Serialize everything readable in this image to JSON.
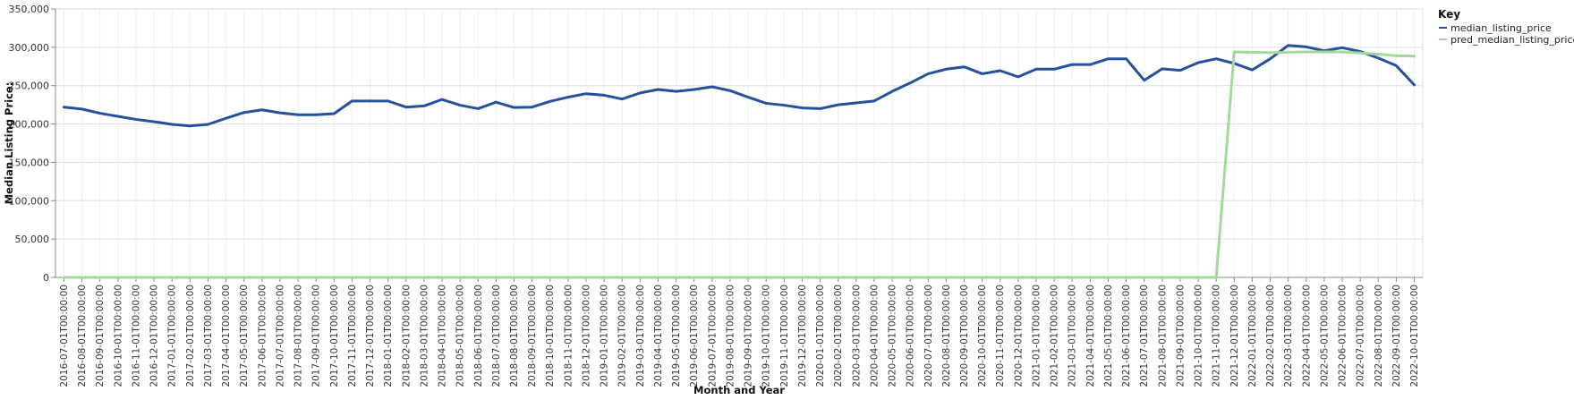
{
  "chart_data": {
    "type": "line",
    "xlabel": "Month and Year",
    "ylabel": "Median Listing Price:",
    "ylim": [
      0,
      350000
    ],
    "yticks": [
      "0",
      "50,000",
      "100,000",
      "150,000",
      "200,000",
      "250,000",
      "300,000",
      "350,000"
    ],
    "x": [
      "2016-07-01T00:00:00",
      "2016-08-01T00:00:00",
      "2016-09-01T00:00:00",
      "2016-10-01T00:00:00",
      "2016-11-01T00:00:00",
      "2016-12-01T00:00:00",
      "2017-01-01T00:00:00",
      "2017-02-01T00:00:00",
      "2017-03-01T00:00:00",
      "2017-04-01T00:00:00",
      "2017-05-01T00:00:00",
      "2017-06-01T00:00:00",
      "2017-07-01T00:00:00",
      "2017-08-01T00:00:00",
      "2017-09-01T00:00:00",
      "2017-10-01T00:00:00",
      "2017-11-01T00:00:00",
      "2017-12-01T00:00:00",
      "2018-01-01T00:00:00",
      "2018-02-01T00:00:00",
      "2018-03-01T00:00:00",
      "2018-04-01T00:00:00",
      "2018-05-01T00:00:00",
      "2018-06-01T00:00:00",
      "2018-07-01T00:00:00",
      "2018-08-01T00:00:00",
      "2018-09-01T00:00:00",
      "2018-10-01T00:00:00",
      "2018-11-01T00:00:00",
      "2018-12-01T00:00:00",
      "2019-01-01T00:00:00",
      "2019-02-01T00:00:00",
      "2019-03-01T00:00:00",
      "2019-04-01T00:00:00",
      "2019-05-01T00:00:00",
      "2019-06-01T00:00:00",
      "2019-07-01T00:00:00",
      "2019-08-01T00:00:00",
      "2019-09-01T00:00:00",
      "2019-10-01T00:00:00",
      "2019-11-01T00:00:00",
      "2019-12-01T00:00:00",
      "2020-01-01T00:00:00",
      "2020-02-01T00:00:00",
      "2020-03-01T00:00:00",
      "2020-04-01T00:00:00",
      "2020-05-01T00:00:00",
      "2020-06-01T00:00:00",
      "2020-07-01T00:00:00",
      "2020-08-01T00:00:00",
      "2020-09-01T00:00:00",
      "2020-10-01T00:00:00",
      "2020-11-01T00:00:00",
      "2020-12-01T00:00:00",
      "2021-01-01T00:00:00",
      "2021-02-01T00:00:00",
      "2021-03-01T00:00:00",
      "2021-04-01T00:00:00",
      "2021-05-01T00:00:00",
      "2021-06-01T00:00:00",
      "2021-07-01T00:00:00",
      "2021-08-01T00:00:00",
      "2021-09-01T00:00:00",
      "2021-10-01T00:00:00",
      "2021-11-01T00:00:00",
      "2021-12-01T00:00:00",
      "2022-01-01T00:00:00",
      "2022-02-01T00:00:00",
      "2022-03-01T00:00:00",
      "2022-04-01T00:00:00",
      "2022-05-01T00:00:00",
      "2022-06-01T00:00:00",
      "2022-07-01T00:00:00",
      "2022-08-01T00:00:00",
      "2022-09-01T00:00:00",
      "2022-10-01T00:00:00"
    ],
    "series": [
      {
        "name": "median_listing_price",
        "color": "#24519c",
        "values": [
          222000,
          219500,
          214000,
          210000,
          206000,
          203000,
          199500,
          197500,
          199500,
          207500,
          215000,
          218500,
          214500,
          212000,
          212000,
          213500,
          230000,
          230000,
          230000,
          222000,
          223500,
          232000,
          224500,
          220000,
          228500,
          221500,
          222000,
          229500,
          235000,
          239500,
          237500,
          232500,
          240500,
          245000,
          242500,
          245000,
          248500,
          243500,
          235000,
          227000,
          224500,
          221000,
          220000,
          225000,
          227500,
          230000,
          242500,
          253500,
          265500,
          271500,
          274500,
          265500,
          269500,
          261500,
          271500,
          271500,
          277500,
          277500,
          285000,
          285000,
          257000,
          272000,
          270000,
          280000,
          285000,
          279000,
          270500,
          285000,
          302500,
          300500,
          295500,
          299500,
          294500,
          286000,
          276000,
          251000
        ]
      },
      {
        "name": "pred_median_listing_price",
        "color": "#a1d99b",
        "values": [
          0,
          0,
          0,
          0,
          0,
          0,
          0,
          0,
          0,
          0,
          0,
          0,
          0,
          0,
          0,
          0,
          0,
          0,
          0,
          0,
          0,
          0,
          0,
          0,
          0,
          0,
          0,
          0,
          0,
          0,
          0,
          0,
          0,
          0,
          0,
          0,
          0,
          0,
          0,
          0,
          0,
          0,
          0,
          0,
          0,
          0,
          0,
          0,
          0,
          0,
          0,
          0,
          0,
          0,
          0,
          0,
          0,
          0,
          0,
          0,
          0,
          0,
          0,
          0,
          0,
          294000,
          293500,
          293000,
          293500,
          294000,
          294000,
          294000,
          292500,
          291000,
          289000,
          288500
        ]
      }
    ],
    "legend": {
      "title": "Key",
      "placement": "top-right"
    },
    "grid": true
  }
}
